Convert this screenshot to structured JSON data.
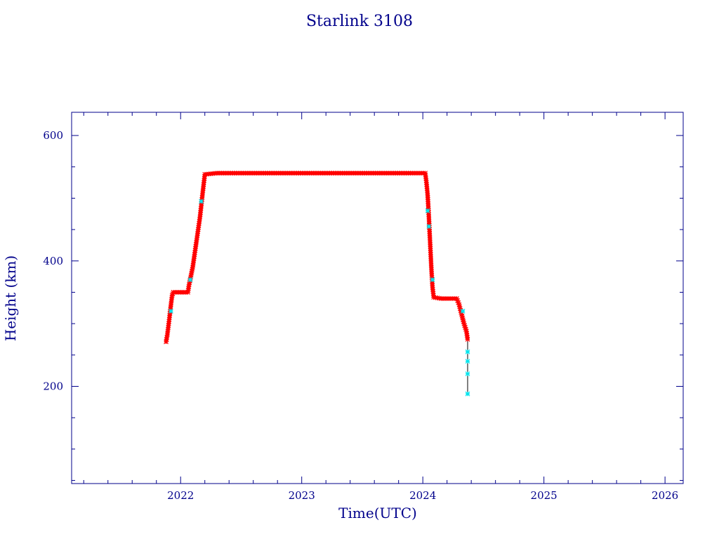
{
  "chart_data": {
    "type": "scatter",
    "title": "Starlink 3108",
    "xlabel": "Time(UTC)",
    "ylabel": "Height (km)",
    "xlim": [
      2021.1,
      2026.15
    ],
    "ylim": [
      45,
      637
    ],
    "x_ticks": [
      2022,
      2023,
      2024,
      2025,
      2026
    ],
    "y_ticks": [
      200,
      400,
      600
    ],
    "grid": false,
    "colors": {
      "axis": "#00008b",
      "primary_marker": "#ff0000",
      "secondary_marker": "#00e5ee",
      "line": "#000000"
    },
    "series": [
      {
        "values": [
          [
            2021.88,
            271
          ],
          [
            2021.89,
            282
          ],
          [
            2021.9,
            297
          ],
          [
            2021.91,
            313
          ],
          [
            2021.92,
            330
          ],
          [
            2021.93,
            345
          ],
          [
            2021.94,
            350
          ],
          [
            2022.0,
            350
          ],
          [
            2022.06,
            350
          ],
          [
            2022.07,
            362
          ],
          [
            2022.1,
            390
          ],
          [
            2022.13,
            430
          ],
          [
            2022.16,
            470
          ],
          [
            2022.18,
            505
          ],
          [
            2022.2,
            538
          ],
          [
            2022.3,
            540
          ],
          [
            2022.5,
            540
          ],
          [
            2022.7,
            540
          ],
          [
            2022.9,
            540
          ],
          [
            2023.1,
            540
          ],
          [
            2023.3,
            540
          ],
          [
            2023.5,
            540
          ],
          [
            2023.7,
            540
          ],
          [
            2023.9,
            540
          ],
          [
            2024.02,
            540
          ],
          [
            2024.03,
            525
          ],
          [
            2024.04,
            505
          ],
          [
            2024.05,
            470
          ],
          [
            2024.06,
            430
          ],
          [
            2024.07,
            390
          ],
          [
            2024.08,
            358
          ],
          [
            2024.09,
            342
          ],
          [
            2024.15,
            340
          ],
          [
            2024.2,
            340
          ],
          [
            2024.28,
            340
          ],
          [
            2024.3,
            330
          ],
          [
            2024.32,
            315
          ],
          [
            2024.34,
            300
          ],
          [
            2024.36,
            288
          ],
          [
            2024.37,
            275
          ]
        ]
      },
      {
        "values": [
          [
            2021.92,
            320
          ],
          [
            2022.08,
            370
          ],
          [
            2022.17,
            495
          ],
          [
            2024.04,
            480
          ],
          [
            2024.05,
            455
          ],
          [
            2024.08,
            370
          ],
          [
            2024.33,
            320
          ],
          [
            2024.37,
            255
          ],
          [
            2024.37,
            240
          ],
          [
            2024.37,
            220
          ],
          [
            2024.37,
            188
          ]
        ]
      }
    ]
  }
}
